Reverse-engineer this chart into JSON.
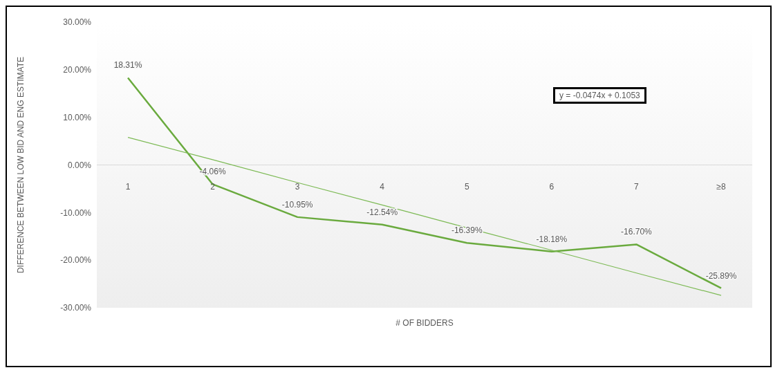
{
  "chart_data": {
    "type": "line",
    "xlabel": "# OF BIDDERS",
    "ylabel": "DIFFERENCE BETWEEN LOW BID AND ENG ESTIMATE",
    "categories": [
      "1",
      "2",
      "3",
      "4",
      "5",
      "6",
      "7",
      "≥8"
    ],
    "series": [
      {
        "color": "#6aaa3e",
        "values": [
          18.31,
          -4.06,
          -10.95,
          -12.54,
          -16.39,
          -18.18,
          -16.7,
          -25.89
        ],
        "value_labels": [
          "18.31%",
          "-4.06%",
          "-10.95%",
          "-12.54%",
          "-16.39%",
          "-18.18%",
          "-16.70%",
          "-25.89%"
        ]
      },
      {
        "type": "line",
        "color": "#7dba55",
        "values": [
          5.8,
          1.1,
          -3.7,
          -8.4,
          -13.2,
          -17.9,
          -22.7,
          -27.4
        ]
      }
    ],
    "ylim": [
      -30,
      30
    ],
    "yticks": [
      {
        "value": -30,
        "label": "-30.00%"
      },
      {
        "value": -20,
        "label": "-20.00%"
      },
      {
        "value": -10,
        "label": "-10.00%"
      },
      {
        "value": 0,
        "label": "0.00%"
      },
      {
        "value": 10,
        "label": "10.00%"
      },
      {
        "value": 20,
        "label": "20.00%"
      },
      {
        "value": 30,
        "label": "30.00%"
      }
    ],
    "annotations": [
      "y = -0.0474x + 0.1053"
    ],
    "grid": false,
    "legend": false,
    "marker": "none",
    "line_style": "solid"
  }
}
